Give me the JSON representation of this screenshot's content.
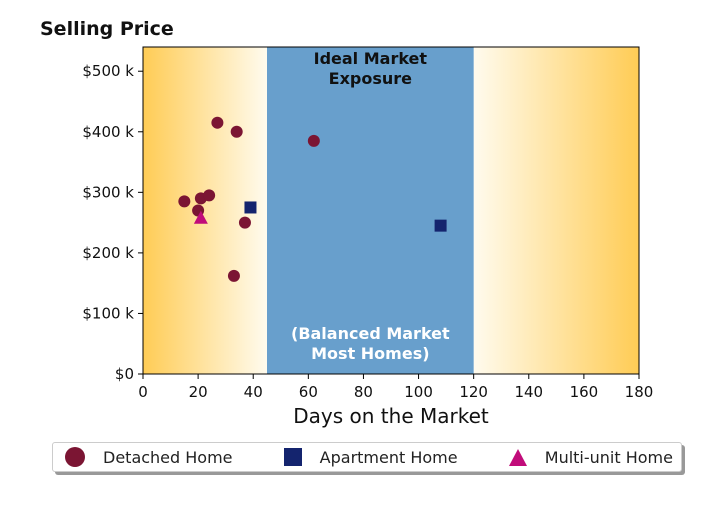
{
  "chart_data": {
    "type": "scatter",
    "title": "Selling Price",
    "xlabel": "Days on the Market",
    "ylabel": "",
    "xlim": [
      0,
      180
    ],
    "ylim": [
      0,
      540000
    ],
    "x_ticks": [
      0,
      20,
      40,
      60,
      80,
      100,
      120,
      140,
      160,
      180
    ],
    "y_ticks": [
      {
        "value": 0,
        "label": "$0"
      },
      {
        "value": 100000,
        "label": "$100 k"
      },
      {
        "value": 200000,
        "label": "$200 k"
      },
      {
        "value": 300000,
        "label": "$300 k"
      },
      {
        "value": 400000,
        "label": "$400 k"
      },
      {
        "value": 500000,
        "label": "$500 k"
      }
    ],
    "band": {
      "x_start": 45,
      "x_end": 120,
      "color": "#689fcc",
      "label_top": [
        "Ideal Market",
        "Exposure"
      ],
      "label_bottom": [
        "(Balanced Market",
        "Most Homes)"
      ]
    },
    "background_gradient": {
      "edge_color": "#ffcc55",
      "center_color": "#fffbee"
    },
    "grid": false,
    "legend_position": "bottom",
    "series": [
      {
        "name": "Detached Home",
        "marker": "circle",
        "color": "#7b1533",
        "points": [
          [
            15,
            285000
          ],
          [
            20,
            270000
          ],
          [
            21,
            290000
          ],
          [
            24,
            295000
          ],
          [
            27,
            415000
          ],
          [
            33,
            162000
          ],
          [
            34,
            400000
          ],
          [
            37,
            250000
          ],
          [
            62,
            385000
          ]
        ]
      },
      {
        "name": "Apartment Home",
        "marker": "square",
        "color": "#14246e",
        "points": [
          [
            39,
            275000
          ],
          [
            108,
            245000
          ]
        ]
      },
      {
        "name": "Multi-unit Home",
        "marker": "triangle",
        "color": "#c10c7a",
        "points": [
          [
            21,
            258000
          ]
        ]
      }
    ]
  }
}
